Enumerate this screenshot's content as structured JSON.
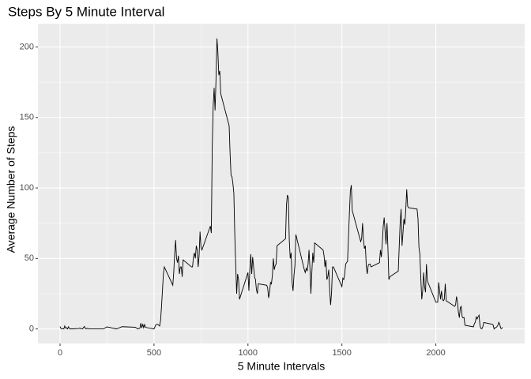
{
  "chart_data": {
    "type": "line",
    "title": "Steps By 5 Minute Interval",
    "x_label": "5 Minute Intervals",
    "y_label": "Average Number of Steps",
    "color": "#000000",
    "grid": true,
    "xlim": [
      -117.75,
      2472.75
    ],
    "ylim": [
      -10.3,
      216.5
    ],
    "xticks": [
      0,
      500,
      1000,
      1500,
      2000
    ],
    "yticks": [
      0,
      50,
      100,
      150,
      200
    ],
    "x": [
      0,
      5,
      10,
      15,
      20,
      25,
      30,
      35,
      40,
      45,
      50,
      55,
      100,
      105,
      110,
      115,
      120,
      125,
      130,
      135,
      140,
      145,
      150,
      155,
      200,
      230,
      250,
      300,
      330,
      400,
      415,
      420,
      425,
      430,
      435,
      440,
      445,
      450,
      455,
      500,
      510,
      520,
      530,
      535,
      540,
      550,
      555,
      600,
      605,
      610,
      615,
      620,
      625,
      630,
      635,
      640,
      645,
      650,
      655,
      700,
      705,
      710,
      715,
      720,
      725,
      730,
      735,
      740,
      745,
      750,
      755,
      800,
      805,
      810,
      815,
      820,
      825,
      830,
      835,
      840,
      845,
      850,
      855,
      900,
      905,
      910,
      915,
      920,
      925,
      930,
      935,
      940,
      945,
      950,
      955,
      1000,
      1005,
      1010,
      1015,
      1020,
      1025,
      1030,
      1035,
      1040,
      1045,
      1050,
      1055,
      1100,
      1105,
      1110,
      1115,
      1120,
      1125,
      1130,
      1135,
      1140,
      1145,
      1150,
      1155,
      1200,
      1205,
      1210,
      1215,
      1220,
      1225,
      1230,
      1235,
      1240,
      1245,
      1250,
      1255,
      1300,
      1305,
      1310,
      1315,
      1320,
      1325,
      1330,
      1335,
      1340,
      1345,
      1350,
      1355,
      1400,
      1405,
      1410,
      1415,
      1420,
      1425,
      1430,
      1435,
      1440,
      1445,
      1450,
      1455,
      1500,
      1505,
      1510,
      1515,
      1520,
      1525,
      1530,
      1535,
      1540,
      1545,
      1550,
      1555,
      1600,
      1605,
      1610,
      1615,
      1620,
      1625,
      1630,
      1635,
      1640,
      1645,
      1650,
      1655,
      1700,
      1705,
      1710,
      1715,
      1720,
      1725,
      1730,
      1735,
      1740,
      1745,
      1750,
      1755,
      1800,
      1805,
      1810,
      1815,
      1820,
      1825,
      1830,
      1835,
      1840,
      1845,
      1850,
      1855,
      1900,
      1905,
      1910,
      1915,
      1920,
      1925,
      1930,
      1935,
      1940,
      1945,
      1950,
      1955,
      2000,
      2005,
      2010,
      2015,
      2020,
      2025,
      2030,
      2035,
      2040,
      2045,
      2050,
      2055,
      2100,
      2105,
      2110,
      2115,
      2120,
      2125,
      2130,
      2135,
      2140,
      2145,
      2150,
      2155,
      2200,
      2205,
      2210,
      2215,
      2220,
      2225,
      2230,
      2235,
      2240,
      2245,
      2250,
      2255,
      2300,
      2305,
      2310,
      2315,
      2320,
      2325,
      2330,
      2335,
      2340,
      2345,
      2350,
      2355
    ],
    "values": [
      1.7,
      0.3,
      0.1,
      0.2,
      0,
      2.1,
      0.5,
      0.9,
      0,
      1.5,
      0.3,
      0,
      0.3,
      0.7,
      0.2,
      0.3,
      0,
      1.1,
      1.8,
      0.2,
      0.2,
      0.4,
      0.3,
      0,
      0,
      0,
      1.5,
      0,
      1.6,
      1.2,
      0,
      0.3,
      0.5,
      4.1,
      0.7,
      3.5,
      0.8,
      3.1,
      1.1,
      0,
      3,
      3.3,
      2.1,
      6,
      16,
      39,
      44,
      31,
      40,
      53,
      63,
      50,
      47,
      52,
      39,
      44,
      44,
      37,
      49,
      44,
      44,
      51,
      54,
      50,
      59,
      56,
      44,
      52,
      69,
      58,
      56,
      73,
      68,
      129,
      158,
      171,
      155,
      177,
      206,
      196,
      180,
      183,
      167,
      144,
      124,
      109,
      108,
      103,
      96,
      66,
      45,
      25,
      39,
      35,
      21,
      40,
      27,
      42,
      53,
      39,
      51,
      44,
      37,
      35,
      28,
      25,
      32,
      31,
      29,
      22,
      26,
      33,
      32,
      38,
      50,
      42,
      45,
      46,
      59,
      64,
      88,
      95,
      93,
      63,
      50,
      54,
      33,
      27,
      38,
      45,
      67,
      42,
      40,
      43,
      41,
      46,
      56,
      43,
      25,
      40,
      54,
      47,
      61,
      56,
      52,
      44,
      49,
      35,
      37,
      42,
      27,
      17,
      26,
      44,
      44,
      30,
      36,
      35,
      39,
      46,
      47,
      48,
      65,
      82,
      98,
      102,
      84,
      62,
      64,
      75,
      63,
      57,
      59,
      44,
      39,
      45,
      46,
      46,
      44,
      47,
      56,
      51,
      61,
      73,
      79,
      69,
      60,
      75,
      57,
      35,
      37,
      41,
      58,
      75,
      85,
      59,
      68,
      78,
      74,
      85,
      99,
      87,
      86,
      85,
      78,
      58,
      53,
      36,
      21,
      27,
      40,
      30,
      26,
      46,
      34,
      19,
      19,
      19,
      33,
      27,
      21,
      27,
      21,
      20,
      21,
      32,
      20,
      16,
      17,
      23,
      19,
      12,
      8,
      15,
      16,
      8.7,
      7.8,
      8.1,
      2.6,
      1.5,
      3.7,
      4.8,
      8.5,
      7.1,
      8.7,
      9.8,
      2.2,
      0.3,
      0.1,
      1.6,
      4.6,
      3.3,
      2.8,
      0,
      0.8,
      1,
      1.6,
      2.6,
      4.7,
      3.3,
      0.6,
      0.2,
      1.1
    ]
  }
}
